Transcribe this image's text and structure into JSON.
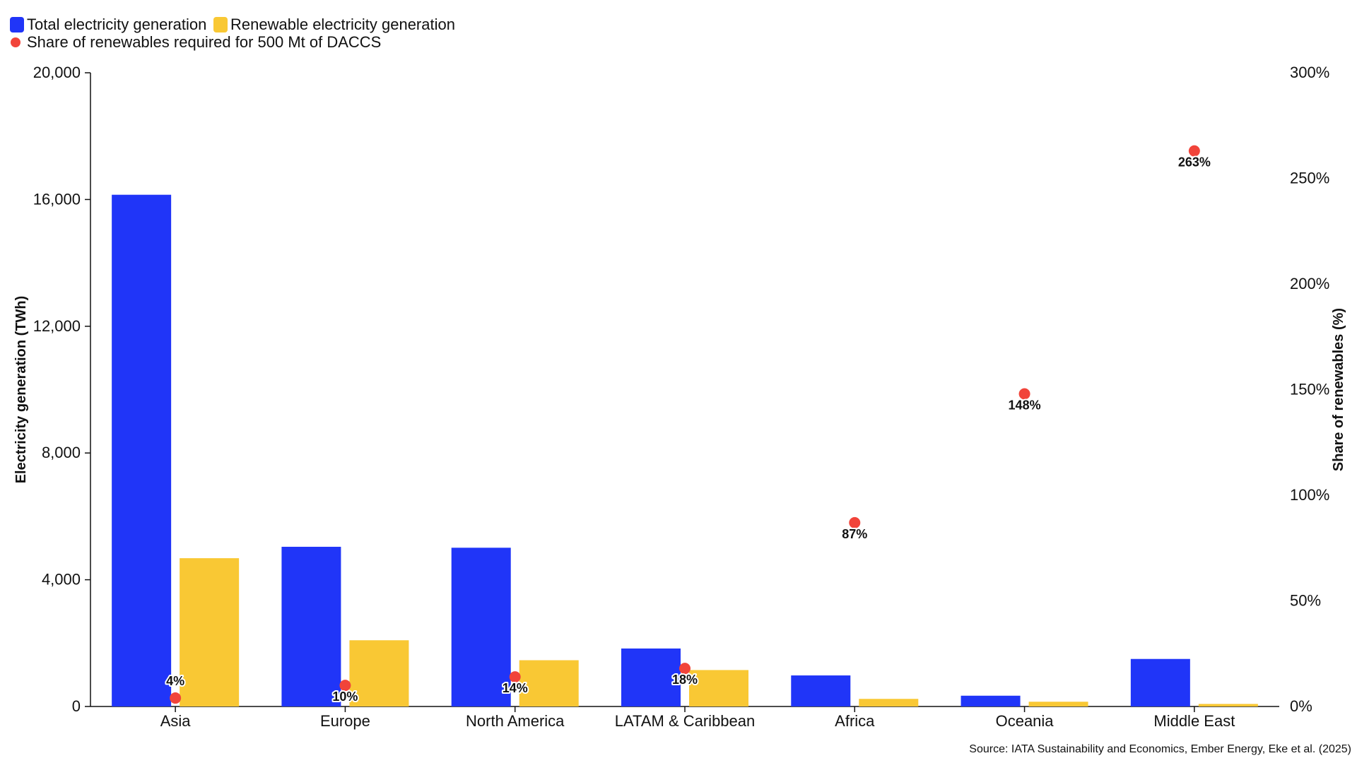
{
  "chart_data": {
    "type": "bar",
    "categories": [
      "Asia",
      "Europe",
      "North America",
      "LATAM & Caribbean",
      "Africa",
      "Oceania",
      "Middle East"
    ],
    "series": [
      {
        "name": "Total electricity generation",
        "type": "bar",
        "axis": "left",
        "color": "#2035F8",
        "values": [
          16150,
          5040,
          5010,
          1830,
          980,
          340,
          1500
        ]
      },
      {
        "name": "Renewable electricity generation",
        "type": "bar",
        "axis": "left",
        "color": "#F9C834",
        "values": [
          4680,
          2090,
          1460,
          1150,
          240,
          150,
          80
        ]
      },
      {
        "name": "Share of renewables required for 500 Mt of DACCS",
        "type": "scatter",
        "axis": "right",
        "color": "#F1443A",
        "values": [
          4,
          10,
          14,
          18,
          87,
          148,
          263
        ],
        "labels": [
          "4%",
          "10%",
          "14%",
          "18%",
          "87%",
          "148%",
          "263%"
        ]
      }
    ],
    "ylabel": "Electricity generation (TWh)",
    "ylim": [
      0,
      20000
    ],
    "yticks": [
      "0",
      "4,000",
      "8,000",
      "12,000",
      "16,000",
      "20,000"
    ],
    "y2label": "Share of renewables (%)",
    "y2lim": [
      0,
      300
    ],
    "y2ticks": [
      "0%",
      "50%",
      "100%",
      "150%",
      "200%",
      "250%",
      "300%"
    ],
    "grid": false,
    "legend_position": "top-left"
  },
  "source": "Source: IATA Sustainability and Economics, Ember Energy, Eke et al. (2025)"
}
